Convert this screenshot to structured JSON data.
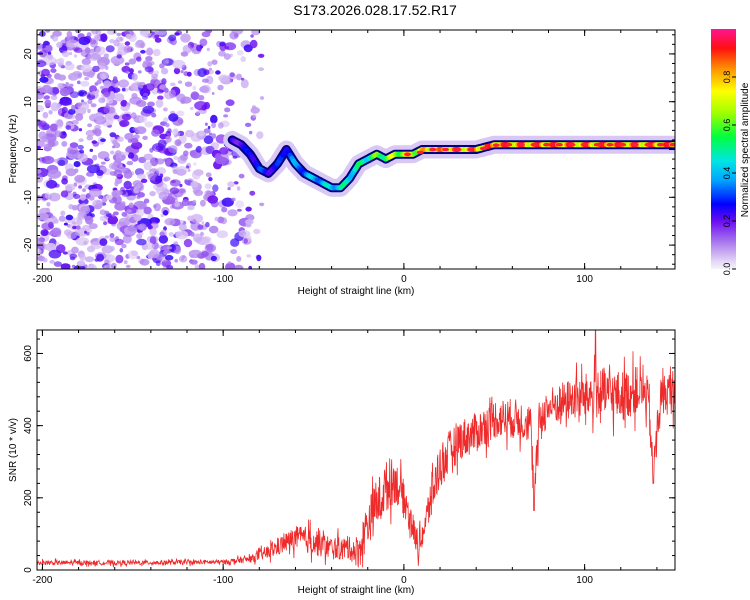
{
  "title": "S173.2026.028.17.52.R17",
  "colors": {
    "speckle": "#8a2be2",
    "snr_line": "#ee2a2a",
    "ridge_outline": "#000080"
  },
  "chart_data": [
    {
      "type": "heatmap",
      "name": "spectrogram",
      "title": "S173.2026.028.17.52.R17",
      "xlabel": "Height of straight line (km)",
      "ylabel": "Frequency (Hz)",
      "xlim": [
        -203,
        150
      ],
      "ylim": [
        -25,
        25
      ],
      "xticks": [
        -200,
        -100,
        0,
        100
      ],
      "yticks": [
        -20,
        -10,
        0,
        10,
        20
      ],
      "xtick_labels": [
        "-200",
        "-100",
        "0",
        "100"
      ],
      "ytick_labels": [
        "-20",
        "-10",
        "0",
        "10",
        "20"
      ],
      "grid": false,
      "ridge": {
        "height_km": [
          -95,
          -90,
          -85,
          -80,
          -75,
          -70,
          -65,
          -60,
          -55,
          -50,
          -45,
          -40,
          -35,
          -30,
          -25,
          -20,
          -15,
          -10,
          -5,
          0,
          5,
          10,
          15,
          20,
          25,
          30,
          40,
          50,
          60,
          80,
          100,
          120,
          150
        ],
        "frequency_hz": [
          2,
          1,
          -1,
          -4,
          -5,
          -3,
          0,
          -3,
          -5,
          -6,
          -7,
          -8,
          -8,
          -6,
          -3,
          -2,
          -1,
          -2,
          -1,
          -1,
          -1,
          0,
          0,
          0,
          0,
          0,
          0,
          1,
          1,
          1,
          1,
          1,
          1
        ],
        "amplitude": [
          0.25,
          0.25,
          0.3,
          0.35,
          0.3,
          0.3,
          0.35,
          0.4,
          0.4,
          0.45,
          0.45,
          0.5,
          0.5,
          0.55,
          0.55,
          0.6,
          0.65,
          0.7,
          0.75,
          0.8,
          0.8,
          0.85,
          0.85,
          0.9,
          0.9,
          0.95,
          0.95,
          0.95,
          0.95,
          0.95,
          0.95,
          0.95,
          0.95
        ]
      },
      "noise_region_km": [
        -203,
        -75
      ]
    },
    {
      "type": "colorbar",
      "name": "amplitude-colorbar",
      "label": "Normalized spectral amplitude",
      "range": [
        0,
        1
      ],
      "ticks": [
        0,
        0.2,
        0.4,
        0.6,
        0.8
      ],
      "tick_labels": [
        "0.0",
        "0.2",
        "0.4",
        "0.6",
        "0.8"
      ]
    },
    {
      "type": "line",
      "name": "snr",
      "xlabel": "Height of straight line (km)",
      "ylabel": "SNR (10 * v/v)",
      "xlim": [
        -203,
        150
      ],
      "ylim": [
        0,
        665
      ],
      "xticks": [
        -200,
        -100,
        0,
        100
      ],
      "yticks": [
        0,
        200,
        400,
        600
      ],
      "xtick_labels": [
        "-200",
        "-100",
        "0",
        "100"
      ],
      "ytick_labels": [
        "0",
        "200",
        "400",
        "600"
      ],
      "grid": false,
      "series": [
        {
          "name": "SNR",
          "x": [
            -203,
            -150,
            -100,
            -85,
            -75,
            -60,
            -50,
            -40,
            -30,
            -25,
            -20,
            -10,
            -5,
            0,
            5,
            8,
            12,
            15,
            20,
            30,
            40,
            50,
            60,
            70,
            72,
            75,
            80,
            90,
            100,
            110,
            120,
            130,
            135,
            138,
            142,
            150
          ],
          "y": [
            20,
            20,
            22,
            30,
            50,
            90,
            80,
            60,
            60,
            50,
            130,
            230,
            250,
            200,
            120,
            60,
            130,
            200,
            290,
            360,
            380,
            420,
            420,
            410,
            200,
            420,
            450,
            470,
            480,
            490,
            480,
            500,
            480,
            280,
            480,
            500
          ],
          "noise_amplitude": [
            8,
            8,
            8,
            12,
            25,
            40,
            50,
            40,
            40,
            60,
            80,
            90,
            80,
            60,
            50,
            40,
            60,
            80,
            80,
            70,
            70,
            70,
            70,
            70,
            60,
            70,
            70,
            70,
            80,
            90,
            90,
            80,
            70,
            60,
            70,
            80
          ],
          "max_spike": {
            "x": 106,
            "y": 665
          },
          "dip_spikes": [
            {
              "x": 72,
              "y": 165
            },
            {
              "x": 138,
              "y": 240
            }
          ]
        }
      ]
    }
  ]
}
